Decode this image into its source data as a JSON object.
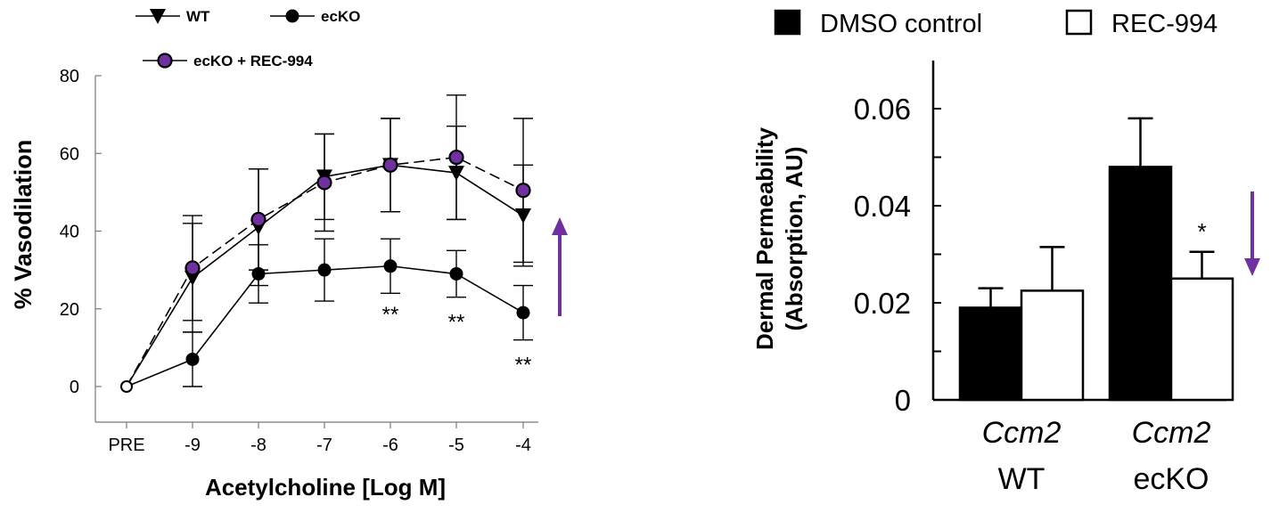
{
  "chart_data": [
    {
      "type": "line",
      "categories": [
        "PRE",
        "-9",
        "-8",
        "-7",
        "-6",
        "-5",
        "-4"
      ],
      "ylabel": "% Vasodilation",
      "xlabel": "Acetylcholine [Log M]",
      "ylim": [
        0,
        80
      ],
      "yticks": [
        "0",
        "20",
        "40",
        "60",
        "80"
      ],
      "series": [
        {
          "name": "WT",
          "marker": "triangle-down",
          "dash": false,
          "values": [
            0,
            28,
            41,
            54,
            57,
            55,
            44
          ],
          "err": [
            0,
            14,
            15,
            11,
            12,
            12,
            13
          ]
        },
        {
          "name": "ecKO",
          "marker": "circle-filled",
          "dash": false,
          "values": [
            0,
            7,
            29,
            30,
            31,
            29,
            19
          ],
          "err": [
            0,
            7,
            7.5,
            8,
            7,
            6,
            7
          ]
        },
        {
          "name": "ecKO + REC-994",
          "marker": "circle-purple",
          "dash": true,
          "values": [
            0,
            30.5,
            43,
            52.5,
            57,
            59,
            50.5
          ],
          "err": [
            0,
            13.5,
            13,
            12.5,
            12,
            16,
            18.5
          ]
        }
      ],
      "annotations": [
        {
          "category": "-6",
          "text": "**"
        },
        {
          "category": "-5",
          "text": "**"
        },
        {
          "category": "-4",
          "text": "**"
        }
      ],
      "arrow": "up",
      "arrow_color": "#7030a0"
    },
    {
      "type": "bar",
      "ylabel_line1": "Dermal Permeability",
      "ylabel_line2": "(Absorption, AU)",
      "ylim": [
        0,
        0.07
      ],
      "yticks": [
        "0",
        "0.02",
        "0.04",
        "0.06"
      ],
      "groups": [
        {
          "label_italic": "Ccm2",
          "label": "WT"
        },
        {
          "label_italic": "Ccm2",
          "label": "ecKO"
        }
      ],
      "series": [
        {
          "name": "DMSO control",
          "fill": "#000000",
          "values": [
            0.019,
            0.048
          ],
          "err": [
            0.004,
            0.01
          ]
        },
        {
          "name": "REC-994",
          "fill": "#ffffff",
          "values": [
            0.0225,
            0.025
          ],
          "err": [
            0.009,
            0.0055
          ]
        }
      ],
      "annotations": [
        {
          "group": 1,
          "series": 1,
          "text": "*"
        }
      ],
      "arrow": "down",
      "arrow_color": "#7030a0"
    }
  ]
}
